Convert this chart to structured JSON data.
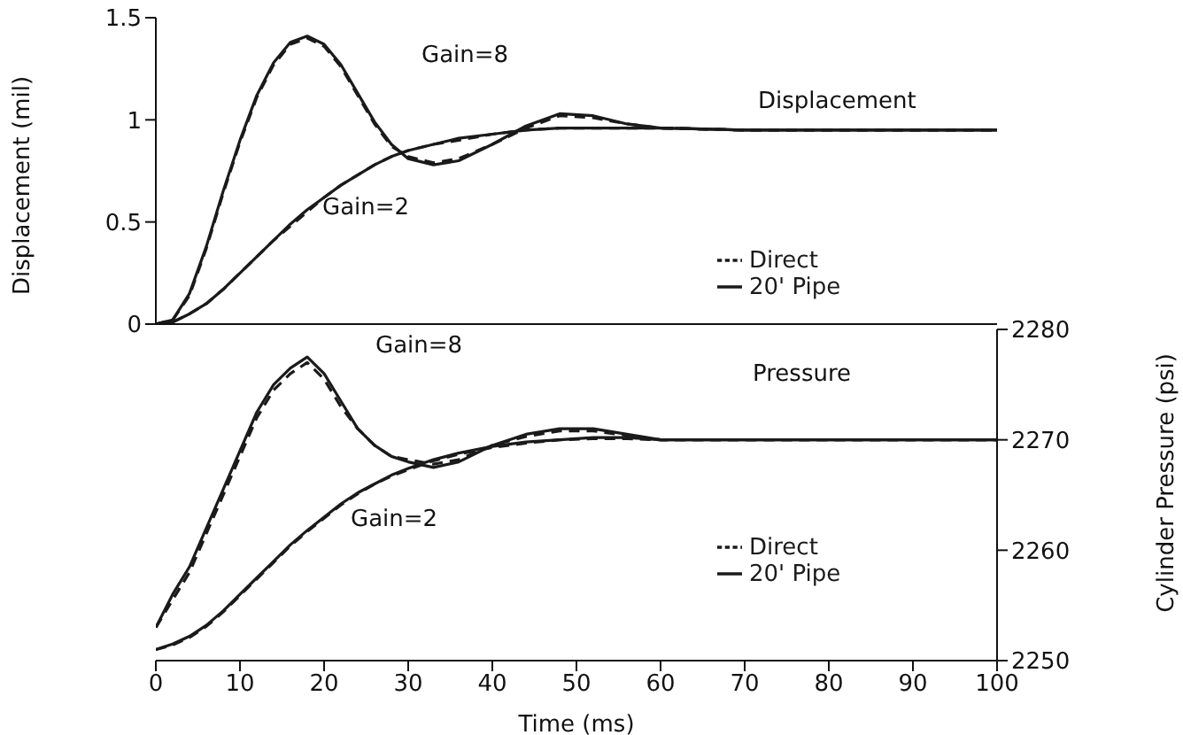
{
  "chart_data": [
    {
      "type": "line",
      "title": "Displacement",
      "ylabel": "Displacement (mil)",
      "x": [
        0,
        2,
        4,
        6,
        8,
        10,
        12,
        14,
        16,
        18,
        20,
        22,
        24,
        26,
        28,
        30,
        33,
        36,
        40,
        44,
        48,
        52,
        56,
        60,
        70,
        80,
        90,
        100
      ],
      "xlim": [
        0,
        100
      ],
      "xticks": [
        0,
        10,
        20,
        30,
        40,
        50,
        60,
        70,
        80,
        90,
        100
      ],
      "ylim": [
        0,
        1.5
      ],
      "yticks": [
        0,
        0.5,
        1,
        1.5
      ],
      "tick_labels": "y",
      "legend": "bottom right",
      "series": [
        {
          "name": "Direct",
          "color": "#1a1a1a",
          "line_style": "dashed",
          "values": [
            0,
            0.02,
            0.14,
            0.37,
            0.64,
            0.89,
            1.11,
            1.27,
            1.37,
            1.4,
            1.36,
            1.26,
            1.12,
            0.98,
            0.87,
            0.82,
            0.79,
            0.81,
            0.88,
            0.96,
            1.02,
            1.01,
            0.98,
            0.96,
            0.95,
            0.95,
            0.95,
            0.95
          ]
        },
        {
          "name": "20' Pipe",
          "color": "#1a1a1a",
          "line_style": "solid",
          "values": [
            0,
            0.02,
            0.15,
            0.38,
            0.65,
            0.9,
            1.12,
            1.28,
            1.38,
            1.41,
            1.37,
            1.27,
            1.13,
            0.99,
            0.88,
            0.81,
            0.78,
            0.8,
            0.88,
            0.97,
            1.03,
            1.02,
            0.98,
            0.96,
            0.95,
            0.95,
            0.95,
            0.95
          ]
        },
        {
          "color": "#1a1a1a",
          "line_style": "dashed",
          "values": [
            0,
            0.01,
            0.05,
            0.1,
            0.17,
            0.25,
            0.33,
            0.41,
            0.48,
            0.55,
            0.62,
            0.68,
            0.73,
            0.78,
            0.82,
            0.85,
            0.88,
            0.9,
            0.93,
            0.95,
            0.96,
            0.96,
            0.96,
            0.96,
            0.95,
            0.95,
            0.95,
            0.95
          ]
        },
        {
          "color": "#1a1a1a",
          "line_style": "solid",
          "values": [
            0,
            0.01,
            0.05,
            0.1,
            0.17,
            0.25,
            0.33,
            0.41,
            0.49,
            0.56,
            0.62,
            0.68,
            0.73,
            0.78,
            0.82,
            0.85,
            0.88,
            0.91,
            0.93,
            0.95,
            0.96,
            0.96,
            0.96,
            0.96,
            0.95,
            0.95,
            0.95,
            0.95
          ]
        }
      ],
      "annotations": [
        "Gain=8",
        "Gain=2"
      ]
    },
    {
      "type": "line",
      "title": "Pressure",
      "xlabel": "Time (ms)",
      "y2label": "Cylinder Pressure (psi)",
      "x": [
        0,
        2,
        4,
        6,
        8,
        10,
        12,
        14,
        16,
        18,
        20,
        22,
        24,
        26,
        28,
        30,
        33,
        36,
        40,
        44,
        48,
        52,
        56,
        60,
        70,
        80,
        90,
        100
      ],
      "xlim": [
        0,
        100
      ],
      "xticks": [
        0,
        10,
        20,
        30,
        40,
        50,
        60,
        70,
        80,
        90,
        100
      ],
      "y2lim": [
        2250,
        2280
      ],
      "y2ticks": [
        2250,
        2260,
        2270,
        2280
      ],
      "legend": "bottom right",
      "series": [
        {
          "name": "Direct",
          "color": "#1a1a1a",
          "line_style": "dashed",
          "axis": "y2",
          "values": [
            2253,
            2255.5,
            2258,
            2261.5,
            2265,
            2268.5,
            2272,
            2274.5,
            2276,
            2277,
            2275.5,
            2273,
            2271,
            2269.5,
            2268.5,
            2268.2,
            2267.8,
            2268.2,
            2269.5,
            2270.3,
            2270.8,
            2270.8,
            2270.4,
            2270,
            2270,
            2270,
            2270,
            2270
          ]
        },
        {
          "name": "20' Pipe",
          "color": "#1a1a1a",
          "line_style": "solid",
          "axis": "y2",
          "values": [
            2253,
            2256,
            2258.5,
            2262,
            2265.5,
            2269,
            2272.5,
            2275,
            2276.5,
            2277.5,
            2276,
            2273.5,
            2271,
            2269.5,
            2268.5,
            2268,
            2267.5,
            2268,
            2269.5,
            2270.5,
            2271,
            2271,
            2270.5,
            2270,
            2270,
            2270,
            2270,
            2270
          ]
        },
        {
          "color": "#1a1a1a",
          "line_style": "dashed",
          "axis": "y2",
          "values": [
            2251,
            2251.4,
            2252.1,
            2253.1,
            2254.4,
            2255.9,
            2257.4,
            2258.9,
            2260.4,
            2261.7,
            2262.9,
            2264.1,
            2265.1,
            2266,
            2266.7,
            2267.3,
            2268.1,
            2268.7,
            2269.3,
            2269.7,
            2270,
            2270.1,
            2270.1,
            2270,
            2270,
            2270,
            2270,
            2270
          ]
        },
        {
          "color": "#1a1a1a",
          "line_style": "solid",
          "axis": "y2",
          "values": [
            2251,
            2251.5,
            2252.2,
            2253.2,
            2254.5,
            2256,
            2257.5,
            2259,
            2260.5,
            2261.8,
            2263,
            2264.2,
            2265.2,
            2266,
            2266.8,
            2267.4,
            2268.2,
            2268.8,
            2269.4,
            2269.8,
            2270,
            2270.2,
            2270.2,
            2270,
            2270,
            2270,
            2270,
            2270
          ]
        }
      ],
      "annotations": [
        "Gain=8",
        "Gain=2"
      ]
    }
  ]
}
